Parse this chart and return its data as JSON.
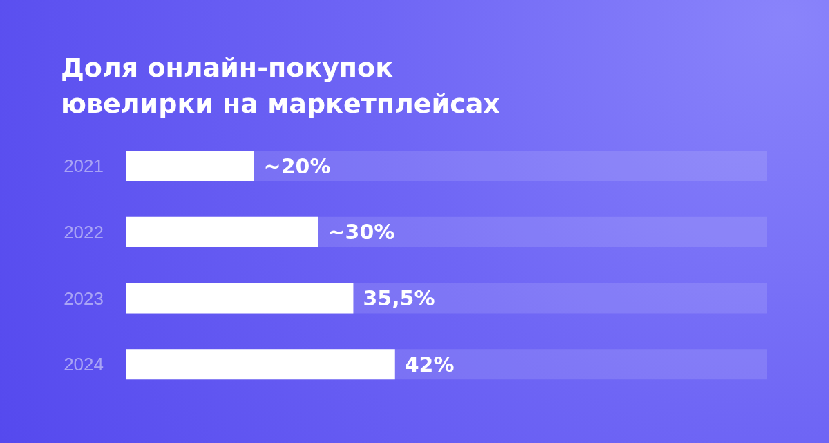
{
  "chart_data": {
    "type": "bar",
    "orientation": "horizontal",
    "title": "Доля онлайн-покупок\nювелирки на маркетплейсах",
    "categories": [
      "2021",
      "2022",
      "2023",
      "2024"
    ],
    "values": [
      20,
      30,
      35.5,
      42
    ],
    "value_labels": [
      "~20%",
      "~30%",
      "35,5%",
      "42%"
    ],
    "color": "#ffffff",
    "xlim": [
      0,
      100
    ],
    "tick_labels": "y"
  }
}
